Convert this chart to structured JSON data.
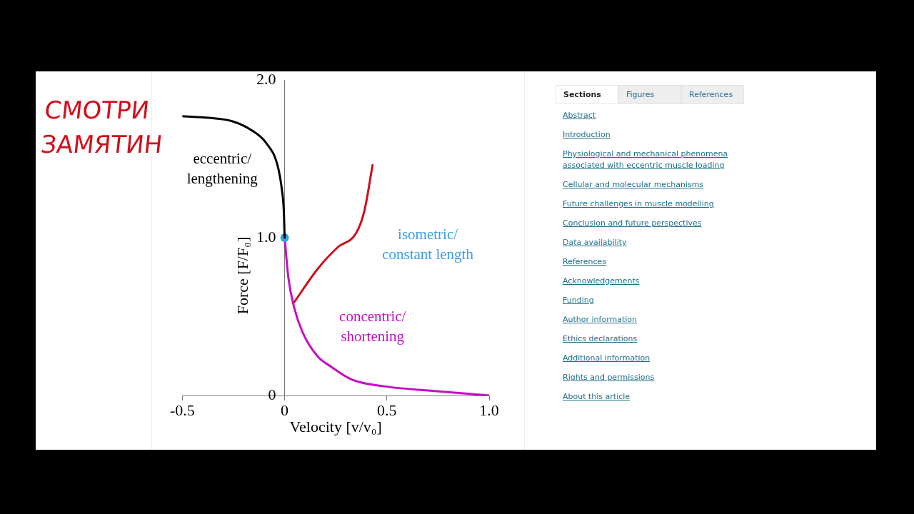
{
  "chart_data": {
    "type": "line",
    "xlabel": "Velocity [v/v₀]",
    "ylabel": "Force [F/F₀]",
    "xlim": [
      -0.5,
      1.0
    ],
    "ylim": [
      0,
      2.0
    ],
    "xticks": [
      -0.5,
      0,
      0.5,
      {
        "value": 1,
        "label": "1.0"
      }
    ],
    "yticks": [
      {
        "value": 0,
        "label": "0"
      },
      {
        "value": 1,
        "label": "1.0"
      },
      {
        "value": 2,
        "label": "2.0"
      }
    ],
    "grid": false,
    "legend": false,
    "marker": "none",
    "series": [
      {
        "color": "#000000",
        "x": [
          -0.5,
          -0.37,
          -0.26,
          -0.16,
          -0.09,
          -0.035,
          -0.014,
          -0.004,
          0
        ],
        "values": [
          1.77,
          1.76,
          1.74,
          1.68,
          1.6,
          1.46,
          1.31,
          1.17,
          1.0
        ]
      },
      {
        "type": "scatter",
        "color": "#3a9fe0",
        "x": [
          0
        ],
        "values": [
          1.0
        ],
        "marker": "circle"
      },
      {
        "color": "#c40fc4",
        "x": [
          0,
          0.018,
          0.046,
          0.088,
          0.16,
          0.23,
          0.33,
          0.5,
          0.69,
          1.0
        ],
        "values": [
          1.0,
          0.75,
          0.56,
          0.4,
          0.25,
          0.18,
          0.1,
          0.056,
          0.033,
          0.0
        ]
      },
      {
        "color": "#d0101c",
        "x": [
          0.046,
          0.16,
          0.26,
          0.35,
          0.39,
          0.43
        ],
        "values": [
          0.59,
          0.8,
          0.94,
          1.03,
          1.17,
          1.46
        ]
      }
    ],
    "annotations": [
      "eccentric/lengthening",
      "isometric/constant length",
      "concentric/shortening",
      "СМОТРИ ЗАМЯТИН",
      "Sections",
      "Figures",
      "References",
      "Abstract",
      "Introduction",
      "Physiological and mechanical phenomena associated with eccentric muscle loading",
      "Cellular and molecular mechanisms",
      "Future challenges in muscle modelling",
      "Conclusion and future perspectives",
      "Data availability",
      "References",
      "Acknowledgements",
      "Funding",
      "Author information",
      "Ethics declarations",
      "Additional information",
      "Rights and permissions",
      "About this article"
    ]
  }
}
